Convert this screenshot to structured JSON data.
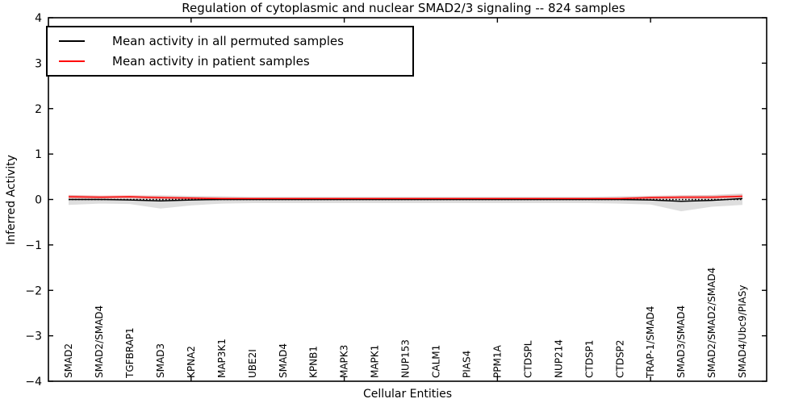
{
  "title": "Regulation of cytoplasmic and nuclear SMAD2/3 signaling -- 824 samples",
  "axes": {
    "ylabel": "Inferred Activity",
    "xlabel": "Cellular Entities"
  },
  "chart_data": {
    "type": "line",
    "title": "Regulation of cytoplasmic and nuclear SMAD2/3 signaling -- 824 samples",
    "xlabel": "Cellular Entities",
    "ylabel": "Inferred Activity",
    "ylim": [
      -4,
      4
    ],
    "yticks": [
      4,
      3,
      2,
      1,
      0,
      -1,
      -2,
      -3,
      -4
    ],
    "grid": false,
    "legend_position": "upper-left",
    "categories": [
      "SMAD2",
      "SMAD2/SMAD4",
      "TGFBRAP1",
      "SMAD3",
      "KPNA2",
      "MAP3K1",
      "UBE2I",
      "SMAD4",
      "KPNB1",
      "MAPK3",
      "MAPK1",
      "NUP153",
      "CALM1",
      "PIAS4",
      "PPM1A",
      "CTDSPL",
      "NUP214",
      "CTDSP1",
      "CTDSP2",
      "TRAP-1/SMAD4",
      "SMAD3/SMAD4",
      "SMAD2/SMAD2/SMAD4",
      "SMAD4/Ubc9/PIASy"
    ],
    "x_major_tick_indices": [
      4,
      9,
      14,
      19
    ],
    "series": [
      {
        "name": "Mean activity in all permuted samples",
        "color": "#000000",
        "style": "solid",
        "values": [
          0.0,
          0.0,
          -0.01,
          -0.03,
          -0.01,
          0.0,
          0.0,
          0.0,
          0.0,
          0.0,
          0.0,
          0.0,
          0.0,
          0.0,
          0.0,
          0.0,
          0.0,
          0.0,
          0.0,
          -0.01,
          -0.04,
          -0.02,
          0.02
        ]
      },
      {
        "name": "Mean activity in patient samples",
        "color": "#ff0000",
        "style": "solid",
        "values": [
          0.06,
          0.05,
          0.06,
          0.04,
          0.03,
          0.02,
          0.02,
          0.02,
          0.02,
          0.02,
          0.02,
          0.02,
          0.02,
          0.02,
          0.02,
          0.02,
          0.02,
          0.02,
          0.02,
          0.04,
          0.05,
          0.05,
          0.07
        ]
      }
    ],
    "bands": [
      {
        "name": "permuted-samples-range",
        "color": "#c8c8c8",
        "opacity": 0.6,
        "upper": [
          0.1,
          0.08,
          0.08,
          0.09,
          0.08,
          0.07,
          0.06,
          0.06,
          0.06,
          0.06,
          0.06,
          0.06,
          0.06,
          0.06,
          0.06,
          0.06,
          0.06,
          0.06,
          0.07,
          0.08,
          0.09,
          0.1,
          0.13
        ],
        "lower": [
          -0.12,
          -0.09,
          -0.1,
          -0.2,
          -0.13,
          -0.09,
          -0.08,
          -0.08,
          -0.08,
          -0.08,
          -0.08,
          -0.08,
          -0.08,
          -0.08,
          -0.08,
          -0.08,
          -0.08,
          -0.08,
          -0.09,
          -0.11,
          -0.26,
          -0.16,
          -0.12
        ]
      },
      {
        "name": "patient-samples-range",
        "color": "#ff4444",
        "opacity": 0.22,
        "upper": [
          0.1,
          0.09,
          0.1,
          0.08,
          0.06,
          0.05,
          0.04,
          0.04,
          0.04,
          0.04,
          0.04,
          0.04,
          0.04,
          0.04,
          0.04,
          0.04,
          0.04,
          0.04,
          0.05,
          0.08,
          0.09,
          0.09,
          0.11
        ],
        "lower": [
          0.02,
          0.01,
          0.02,
          0.0,
          -0.01,
          -0.01,
          -0.01,
          -0.01,
          -0.01,
          -0.01,
          -0.01,
          -0.01,
          -0.01,
          -0.01,
          -0.01,
          -0.01,
          -0.01,
          -0.01,
          -0.01,
          0.0,
          0.01,
          0.01,
          0.03
        ]
      }
    ],
    "zero_line": {
      "y": 0,
      "style": "dotted",
      "color": "#000000"
    }
  }
}
